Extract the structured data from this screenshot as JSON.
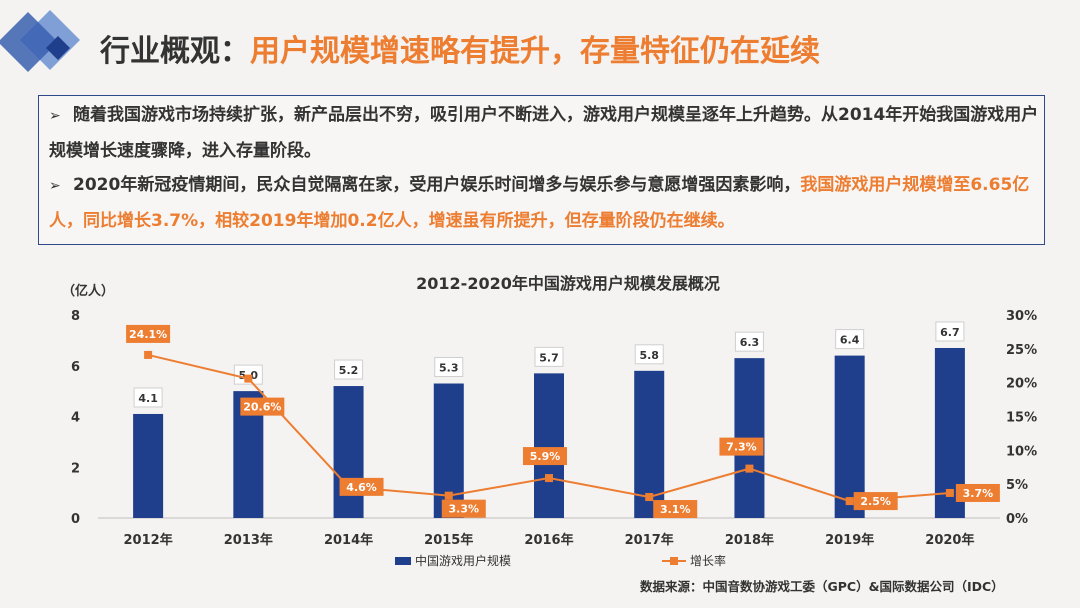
{
  "header": {
    "title_prefix": "行业概观：",
    "title_highlight": "用户规模增速略有提升，存量特征仍在延续"
  },
  "summary": {
    "bullet1": "随着我国游戏市场持续扩张，新产品层出不穷，吸引用户不断进入，游戏用户规模呈逐年上升趋势。从2014年开始我国游戏用户规模增长速度骤降，进入存量阶段。",
    "bullet2_plain": "2020年新冠疫情期间，民众自觉隔离在家，受用户娱乐时间增多与娱乐参与意愿增强因素影响，",
    "bullet2_highlight": "我国游戏用户规模增至6.65亿人，同比增长3.7%，相较2019年增加0.2亿人，增速虽有所提升，但存量阶段仍在继续。"
  },
  "chart_data": {
    "type": "bar",
    "title": "2012-2020年中国游戏用户规模发展概况",
    "y_unit": "（亿人）",
    "categories": [
      "2012年",
      "2013年",
      "2014年",
      "2015年",
      "2016年",
      "2017年",
      "2018年",
      "2019年",
      "2020年"
    ],
    "series": [
      {
        "name": "中国游戏用户规模",
        "type": "bar",
        "axis": "left",
        "values": [
          4.1,
          5.0,
          5.2,
          5.3,
          5.7,
          5.8,
          6.3,
          6.4,
          6.7
        ],
        "labels": [
          "4.1",
          "5.0",
          "5.2",
          "5.3",
          "5.7",
          "5.8",
          "6.3",
          "6.4",
          "6.7"
        ]
      },
      {
        "name": "增长率",
        "type": "line",
        "axis": "right",
        "values": [
          24.1,
          20.6,
          4.6,
          3.3,
          5.9,
          3.1,
          7.3,
          2.5,
          3.7
        ],
        "labels": [
          "24.1%",
          "20.6%",
          "4.6%",
          "3.3%",
          "5.9%",
          "3.1%",
          "7.3%",
          "2.5%",
          "3.7%"
        ]
      }
    ],
    "ylim_left": [
      0,
      8
    ],
    "left_ticks": [
      "0",
      "2",
      "4",
      "6",
      "8"
    ],
    "ylim_right": [
      0,
      30
    ],
    "right_ticks": [
      "0%",
      "5%",
      "10%",
      "15%",
      "20%",
      "25%",
      "30%"
    ],
    "legend_position": "bottom",
    "grid": false,
    "colors": {
      "bar": "#1f3e8c",
      "line": "#ed7d31"
    }
  },
  "source": "数据来源：中国音数协游戏工委（GPC）&国际数据公司（IDC）"
}
